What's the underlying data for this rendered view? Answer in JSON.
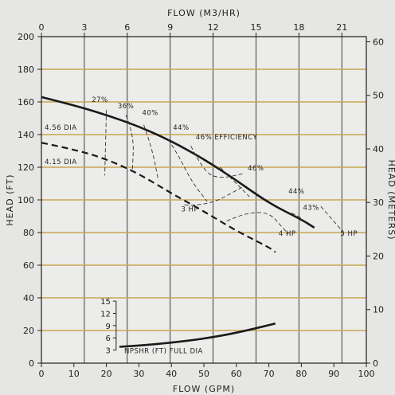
{
  "chart_data": {
    "type": "line",
    "title": "",
    "xlabel": "FLOW (GPM)",
    "x2label": "FLOW (M3/HR)",
    "ylabel": "HEAD (FT)",
    "y2label": "HEAD (METERS)",
    "xlim": [
      0,
      100
    ],
    "ylim": [
      0,
      200
    ],
    "x_ticks": [
      0,
      10,
      20,
      30,
      40,
      50,
      60,
      70,
      80,
      90,
      100
    ],
    "y_ticks": [
      0,
      20,
      40,
      60,
      80,
      100,
      120,
      140,
      160,
      180,
      200
    ],
    "x2_ticks": [
      0,
      3,
      6,
      9,
      12,
      15,
      18,
      21
    ],
    "y2_ticks": [
      0,
      10,
      20,
      30,
      40,
      50,
      60
    ],
    "grid": true,
    "series": [
      {
        "name": "4.56 DIA",
        "style": "solid",
        "x": [
          0,
          10,
          20,
          30,
          40,
          50,
          60,
          70,
          80,
          84
        ],
        "y": [
          163,
          158,
          152,
          145,
          136,
          125,
          112,
          98,
          88,
          83
        ]
      },
      {
        "name": "4.15 DIA",
        "style": "dashed",
        "x": [
          0,
          10,
          20,
          30,
          40,
          50,
          60,
          70,
          72
        ],
        "y": [
          135,
          131,
          125,
          116,
          104,
          93,
          81,
          71,
          68
        ]
      },
      {
        "name": "NPSHR (FT) FULL DIA",
        "style": "solid",
        "x": [
          24,
          30,
          40,
          50,
          60,
          72
        ],
        "npshr_ft": [
          3.8,
          4.1,
          4.8,
          5.8,
          7.2,
          9.5
        ]
      }
    ],
    "efficiency_lines": [
      {
        "label": "27%",
        "x": [
          20,
          19.5
        ],
        "y": [
          155,
          115
        ]
      },
      {
        "label": "36%",
        "x": [
          26,
          28.5,
          28
        ],
        "y": [
          152,
          140,
          118
        ]
      },
      {
        "label": "40%",
        "x": [
          31.5,
          34,
          36
        ],
        "y": [
          146,
          132,
          112
        ]
      },
      {
        "label": "44%",
        "x": [
          39,
          42,
          46,
          51
        ],
        "y": [
          137,
          128,
          112,
          99
        ]
      },
      {
        "label": "46% EFFICIENCY",
        "x": [
          46,
          50,
          55,
          62
        ],
        "y": [
          133,
          117,
          113,
          116
        ]
      },
      {
        "label": "46%",
        "x": [
          55,
          60,
          64
        ],
        "y": [
          120,
          110,
          102
        ]
      },
      {
        "label": "44%",
        "x": [
          72
        ],
        "y": [
          94
        ]
      },
      {
        "label": "43%",
        "x": [
          77,
          80
        ],
        "y": [
          92,
          89
        ]
      }
    ],
    "hp_lines": [
      {
        "label": "3 HP",
        "x": [
          44,
          51,
          62
        ],
        "y": [
          97,
          96,
          108
        ]
      },
      {
        "label": "4 HP",
        "x": [
          57,
          68,
          76
        ],
        "y": [
          87,
          97,
          79
        ]
      },
      {
        "label": "5 HP",
        "x": [
          86,
          93
        ],
        "y": [
          96,
          80
        ]
      }
    ],
    "npshr_axis": {
      "ticks": [
        3,
        6,
        9,
        12,
        15
      ],
      "label": "NPSHR (FT) FULL DIA"
    }
  }
}
